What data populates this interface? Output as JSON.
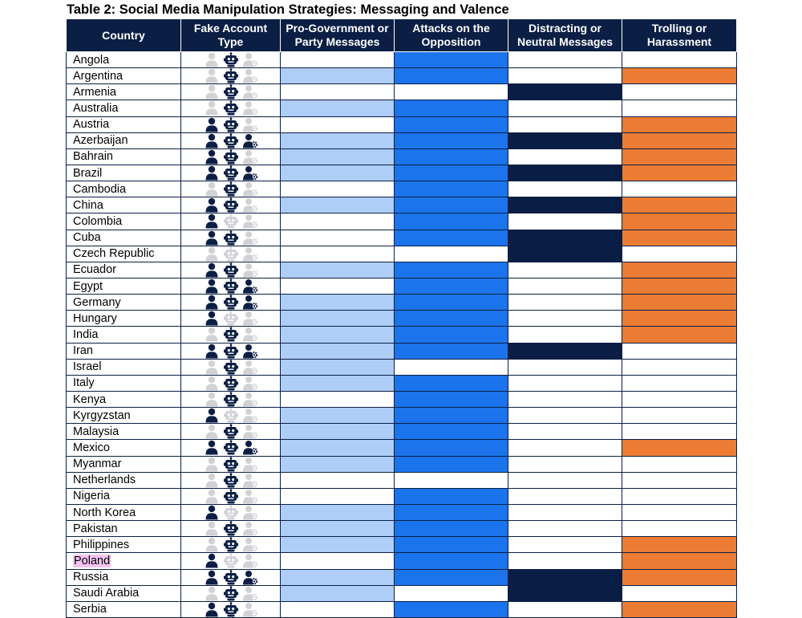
{
  "title": "Table 2: Social Media Manipulation Strategies: Messaging and Valence",
  "headers": {
    "country": "Country",
    "fake_account_type": "Fake Account Type",
    "pro_government": "Pro-Government or Party Messages",
    "attacks": "Attacks on the Opposition",
    "distracting": "Distracting or Neutral Messages",
    "trolling": "Trolling or Harassment"
  },
  "legend_icons": [
    "human-account-icon",
    "bot-account-icon",
    "cyborg-account-icon"
  ],
  "colors": {
    "header": "#0b1f45",
    "pro_government": "#aecdf7",
    "attacks": "#1b74eb",
    "distracting": "#0a1d44",
    "trolling": "#ec7c34",
    "icon_active": "#0b1f45",
    "icon_inactive": "#c8cbd0",
    "highlight": "#f4c3f2"
  },
  "rows": [
    {
      "country": "Angola",
      "human": false,
      "bot": true,
      "cyborg": false,
      "pro": false,
      "attacks": true,
      "distracting": false,
      "trolling": false
    },
    {
      "country": "Argentina",
      "human": false,
      "bot": true,
      "cyborg": false,
      "pro": true,
      "attacks": true,
      "distracting": false,
      "trolling": true
    },
    {
      "country": "Armenia",
      "human": false,
      "bot": true,
      "cyborg": false,
      "pro": false,
      "attacks": false,
      "distracting": true,
      "trolling": false
    },
    {
      "country": "Australia",
      "human": false,
      "bot": true,
      "cyborg": false,
      "pro": true,
      "attacks": true,
      "distracting": false,
      "trolling": false
    },
    {
      "country": "Austria",
      "human": true,
      "bot": true,
      "cyborg": false,
      "pro": false,
      "attacks": true,
      "distracting": false,
      "trolling": true
    },
    {
      "country": "Azerbaijan",
      "human": true,
      "bot": true,
      "cyborg": true,
      "pro": true,
      "attacks": true,
      "distracting": true,
      "trolling": true
    },
    {
      "country": "Bahrain",
      "human": true,
      "bot": true,
      "cyborg": false,
      "pro": true,
      "attacks": true,
      "distracting": false,
      "trolling": true
    },
    {
      "country": "Brazil",
      "human": true,
      "bot": true,
      "cyborg": true,
      "pro": true,
      "attacks": true,
      "distracting": true,
      "trolling": true
    },
    {
      "country": "Cambodia",
      "human": false,
      "bot": true,
      "cyborg": false,
      "pro": false,
      "attacks": true,
      "distracting": false,
      "trolling": false
    },
    {
      "country": "China",
      "human": true,
      "bot": true,
      "cyborg": false,
      "pro": true,
      "attacks": true,
      "distracting": true,
      "trolling": true
    },
    {
      "country": "Colombia",
      "human": true,
      "bot": false,
      "cyborg": false,
      "pro": false,
      "attacks": true,
      "distracting": false,
      "trolling": true
    },
    {
      "country": "Cuba",
      "human": true,
      "bot": true,
      "cyborg": false,
      "pro": false,
      "attacks": true,
      "distracting": true,
      "trolling": true
    },
    {
      "country": "Czech Republic",
      "human": false,
      "bot": false,
      "cyborg": false,
      "pro": false,
      "attacks": false,
      "distracting": true,
      "trolling": false
    },
    {
      "country": "Ecuador",
      "human": true,
      "bot": true,
      "cyborg": false,
      "pro": true,
      "attacks": true,
      "distracting": false,
      "trolling": true
    },
    {
      "country": "Egypt",
      "human": true,
      "bot": true,
      "cyborg": true,
      "pro": false,
      "attacks": true,
      "distracting": false,
      "trolling": true
    },
    {
      "country": "Germany",
      "human": true,
      "bot": true,
      "cyborg": true,
      "pro": true,
      "attacks": true,
      "distracting": false,
      "trolling": true
    },
    {
      "country": "Hungary",
      "human": true,
      "bot": false,
      "cyborg": false,
      "pro": true,
      "attacks": true,
      "distracting": false,
      "trolling": true
    },
    {
      "country": "India",
      "human": false,
      "bot": true,
      "cyborg": false,
      "pro": true,
      "attacks": true,
      "distracting": false,
      "trolling": true
    },
    {
      "country": "Iran",
      "human": true,
      "bot": true,
      "cyborg": true,
      "pro": true,
      "attacks": true,
      "distracting": true,
      "trolling": false
    },
    {
      "country": "Israel",
      "human": false,
      "bot": true,
      "cyborg": false,
      "pro": true,
      "attacks": false,
      "distracting": false,
      "trolling": false
    },
    {
      "country": "Italy",
      "human": false,
      "bot": true,
      "cyborg": false,
      "pro": true,
      "attacks": true,
      "distracting": false,
      "trolling": false
    },
    {
      "country": "Kenya",
      "human": false,
      "bot": true,
      "cyborg": false,
      "pro": false,
      "attacks": true,
      "distracting": false,
      "trolling": false
    },
    {
      "country": "Kyrgyzstan",
      "human": true,
      "bot": false,
      "cyborg": false,
      "pro": true,
      "attacks": true,
      "distracting": false,
      "trolling": false
    },
    {
      "country": "Malaysia",
      "human": false,
      "bot": true,
      "cyborg": false,
      "pro": true,
      "attacks": true,
      "distracting": false,
      "trolling": false
    },
    {
      "country": "Mexico",
      "human": true,
      "bot": true,
      "cyborg": true,
      "pro": true,
      "attacks": true,
      "distracting": false,
      "trolling": true
    },
    {
      "country": "Myanmar",
      "human": false,
      "bot": true,
      "cyborg": false,
      "pro": true,
      "attacks": true,
      "distracting": false,
      "trolling": false
    },
    {
      "country": "Netherlands",
      "human": false,
      "bot": true,
      "cyborg": false,
      "pro": false,
      "attacks": false,
      "distracting": false,
      "trolling": false
    },
    {
      "country": "Nigeria",
      "human": false,
      "bot": true,
      "cyborg": false,
      "pro": false,
      "attacks": true,
      "distracting": false,
      "trolling": false
    },
    {
      "country": "North Korea",
      "human": true,
      "bot": false,
      "cyborg": false,
      "pro": true,
      "attacks": true,
      "distracting": false,
      "trolling": false
    },
    {
      "country": "Pakistan",
      "human": false,
      "bot": true,
      "cyborg": false,
      "pro": true,
      "attacks": true,
      "distracting": false,
      "trolling": false
    },
    {
      "country": "Philippines",
      "human": false,
      "bot": true,
      "cyborg": false,
      "pro": true,
      "attacks": true,
      "distracting": false,
      "trolling": true
    },
    {
      "country": "Poland",
      "human": true,
      "bot": false,
      "cyborg": false,
      "pro": false,
      "attacks": true,
      "distracting": false,
      "trolling": true,
      "highlight": true
    },
    {
      "country": "Russia",
      "human": true,
      "bot": true,
      "cyborg": true,
      "pro": true,
      "attacks": true,
      "distracting": true,
      "trolling": true
    },
    {
      "country": "Saudi Arabia",
      "human": false,
      "bot": true,
      "cyborg": false,
      "pro": true,
      "attacks": false,
      "distracting": true,
      "trolling": false
    },
    {
      "country": "Serbia",
      "human": true,
      "bot": true,
      "cyborg": false,
      "pro": false,
      "attacks": true,
      "distracting": false,
      "trolling": true
    }
  ]
}
